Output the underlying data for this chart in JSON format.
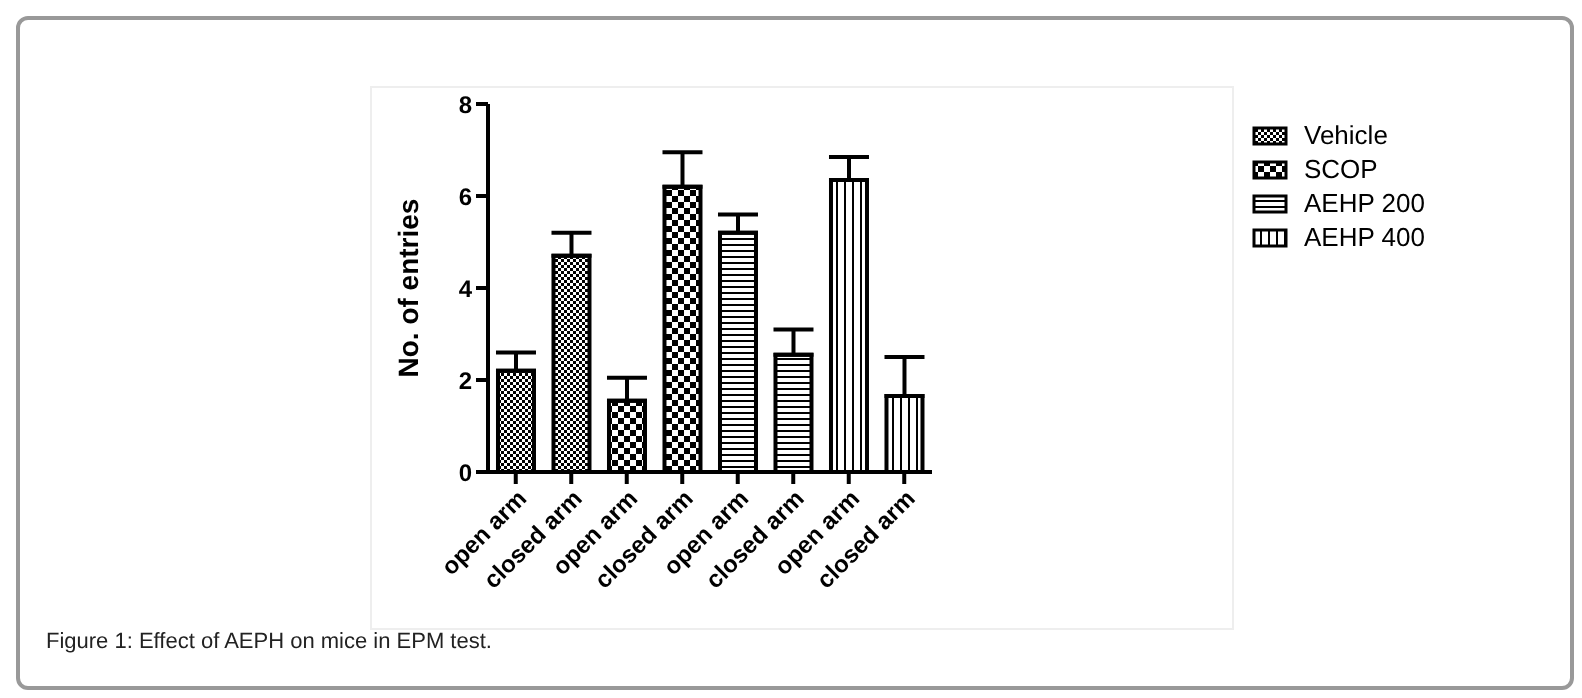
{
  "chart_data": {
    "type": "bar",
    "ylabel": "No. of entries",
    "categories": [
      "open arm",
      "closed arm",
      "open arm",
      "closed arm",
      "open arm",
      "closed arm",
      "open arm",
      "closed arm"
    ],
    "series": [
      {
        "name": "Vehicle",
        "color": "#000000",
        "values": [
          2.2,
          4.7,
          null,
          null,
          null,
          null,
          null,
          null
        ],
        "errors": [
          [
            2.2,
            2.6
          ],
          [
            4.7,
            5.2
          ],
          null,
          null,
          null,
          null,
          null,
          null
        ]
      },
      {
        "name": "SCOP",
        "color": "#000000",
        "values": [
          null,
          null,
          1.55,
          6.2,
          null,
          null,
          null,
          null
        ],
        "errors": [
          null,
          null,
          [
            1.55,
            2.05
          ],
          [
            6.2,
            6.95
          ],
          null,
          null,
          null,
          null
        ]
      },
      {
        "name": "AEHP 200",
        "color": "#000000",
        "values": [
          null,
          null,
          null,
          null,
          5.2,
          2.55,
          null,
          null
        ],
        "errors": [
          null,
          null,
          null,
          null,
          [
            5.2,
            5.6
          ],
          [
            2.55,
            3.1
          ],
          null,
          null
        ]
      },
      {
        "name": "AEHP 400",
        "color": "#000000",
        "values": [
          null,
          null,
          null,
          null,
          null,
          null,
          6.35,
          1.65
        ],
        "errors": [
          null,
          null,
          null,
          null,
          null,
          null,
          [
            6.35,
            6.85
          ],
          [
            1.65,
            2.5
          ]
        ]
      }
    ],
    "ylim": [
      0,
      8
    ],
    "yticks": [
      0,
      2,
      4,
      6,
      8
    ],
    "legend": "right",
    "annotations": [
      "Figure 1: Effect of AEPH on mice in EPM test."
    ]
  }
}
